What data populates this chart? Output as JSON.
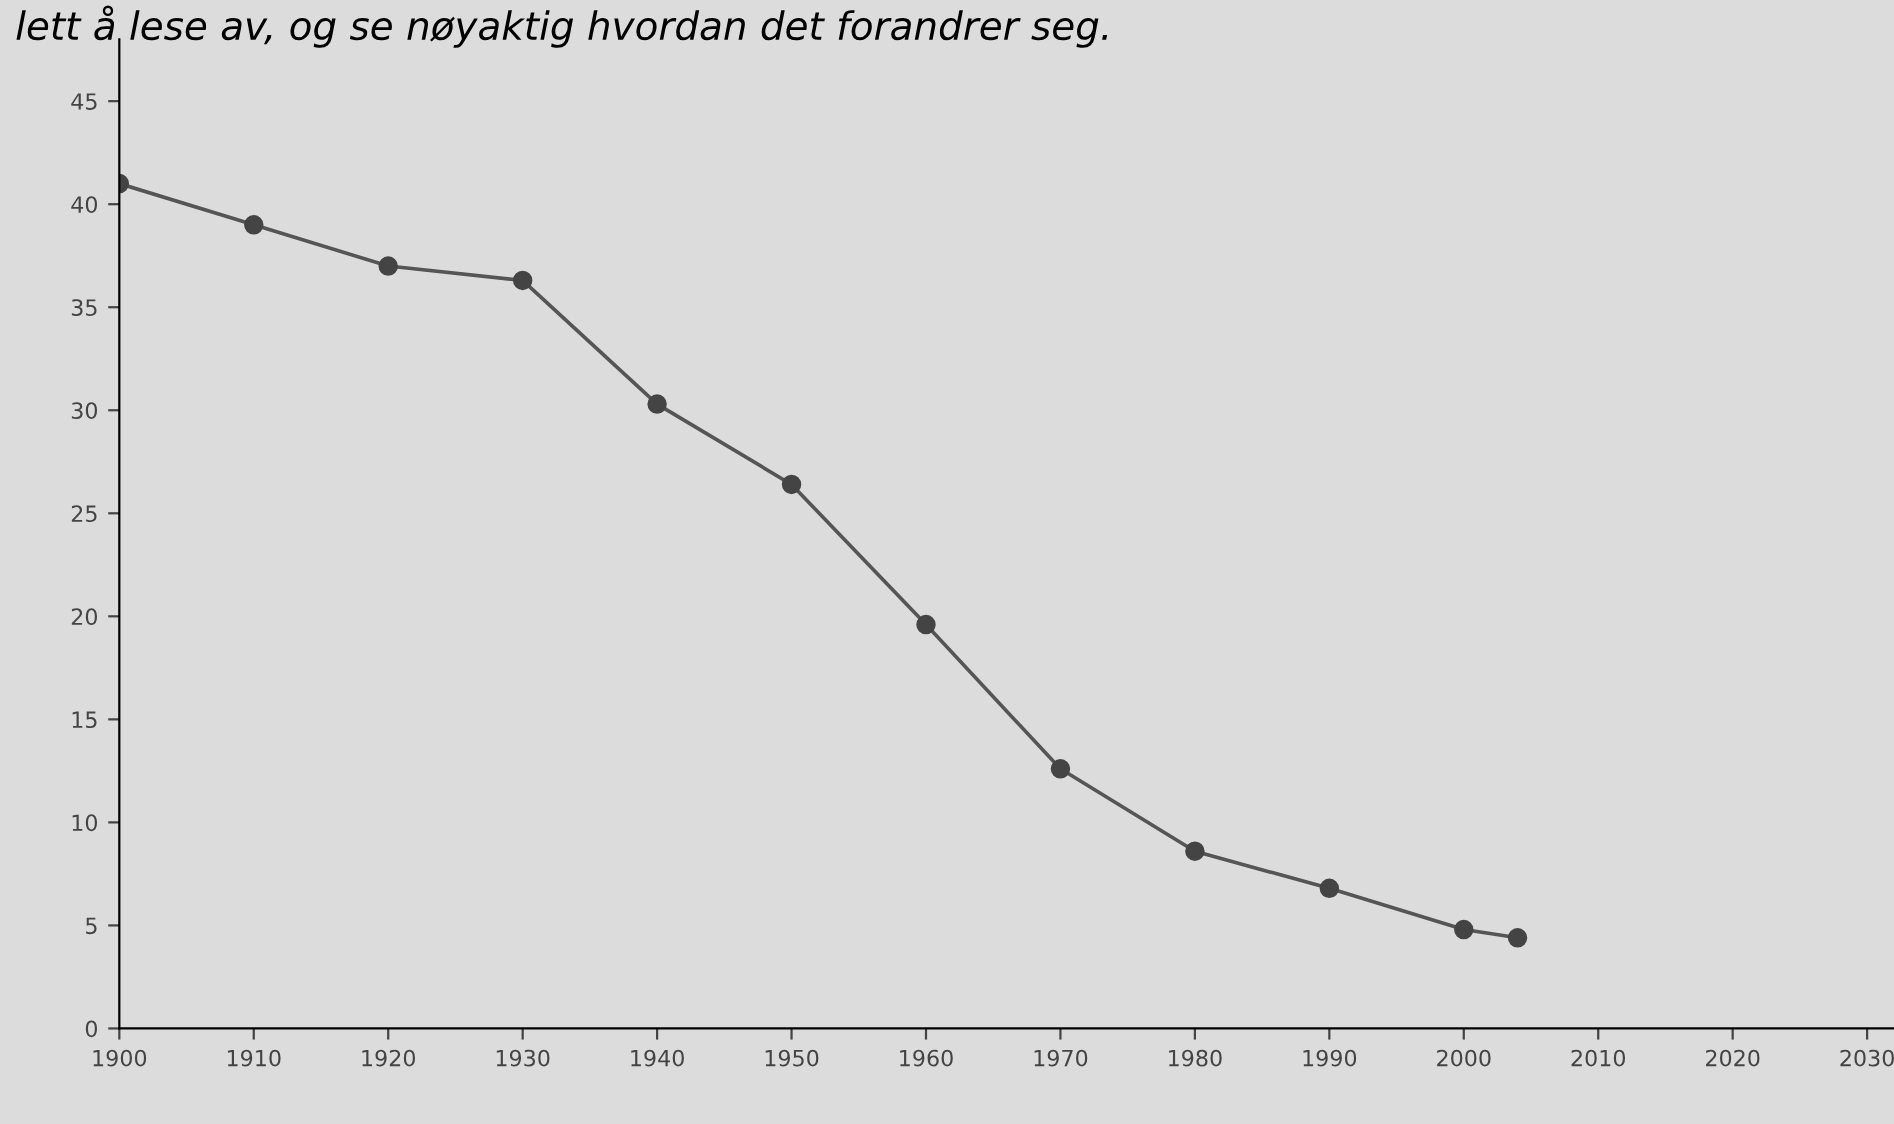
{
  "chart_data": {
    "type": "line",
    "annotations": [
      "lett å lese av, og se nøyaktig hvordan det forandrer seg."
    ],
    "x": [
      1900,
      1910,
      1920,
      1930,
      1940,
      1950,
      1960,
      1970,
      1980,
      1990,
      2000,
      2004
    ],
    "series": [
      {
        "color": "#555555",
        "values": [
          41,
          39,
          37,
          36.3,
          30.3,
          26.4,
          19.6,
          12.6,
          8.6,
          6.8,
          4.8,
          4.4
        ]
      }
    ],
    "xlim": [
      1900,
      2032
    ],
    "ylim": [
      0,
      48
    ],
    "xticks": [
      1900,
      1910,
      1920,
      1930,
      1940,
      1950,
      1960,
      1970,
      1980,
      1990,
      2000,
      2010,
      2020,
      2030
    ],
    "yticks": [
      0,
      5,
      10,
      15,
      20,
      25,
      30,
      35,
      40,
      45
    ],
    "marker": "circle",
    "line_style": "solid",
    "grid": false,
    "legend": false
  }
}
